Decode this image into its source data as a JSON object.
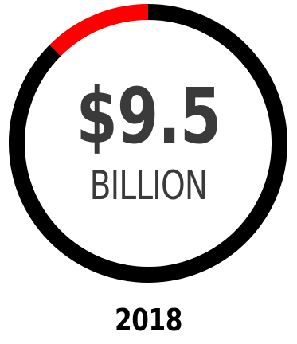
{
  "chart_data": {
    "type": "donut",
    "series": [
      {
        "name": "",
        "value": 0.125,
        "color": "#ff0000"
      },
      {
        "name": "",
        "value": 0.875,
        "color": "#000000"
      }
    ],
    "start_angle_deg": 315,
    "center_value": "$9.5",
    "center_unit": "BILLION",
    "category": "2018"
  },
  "colors": {
    "highlight": "#ff0000",
    "ring": "#000000",
    "text": "#3a3a3a",
    "year_text": "#000000"
  }
}
